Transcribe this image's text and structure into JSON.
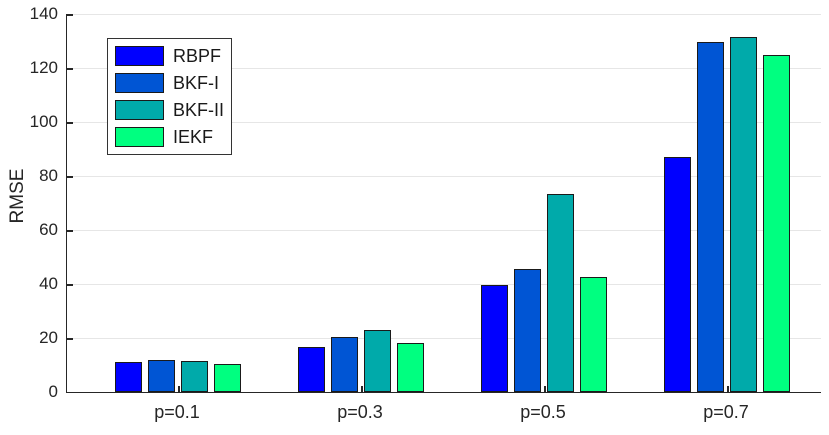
{
  "chart_data": {
    "type": "bar",
    "title": "",
    "xlabel": "",
    "ylabel": "RMSE",
    "categories": [
      "p=0.1",
      "p=0.3",
      "p=0.5",
      "p=0.7"
    ],
    "series": [
      {
        "name": "RBPF",
        "color": "#0000ff",
        "values": [
          11,
          16.5,
          39.5,
          87
        ]
      },
      {
        "name": "BKF-I",
        "color": "#0055d4",
        "values": [
          12,
          20.5,
          45.5,
          129.5
        ]
      },
      {
        "name": "BKF-II",
        "color": "#00aaaa",
        "values": [
          11.5,
          23,
          73.5,
          131.5
        ]
      },
      {
        "name": "IEKF",
        "color": "#00ff80",
        "values": [
          10.5,
          18,
          42.5,
          125
        ]
      }
    ],
    "ylim": [
      0,
      140
    ],
    "yticks": [
      0,
      20,
      40,
      60,
      80,
      100,
      120,
      140
    ],
    "grid": "horizontal",
    "legend_position": "top-left"
  },
  "style": {
    "axis_color": "#262626",
    "grid_color": "#e6e6e6",
    "bar_edge_color": "#1a1a1a",
    "text_color": "#262626",
    "background": "#ffffff"
  }
}
